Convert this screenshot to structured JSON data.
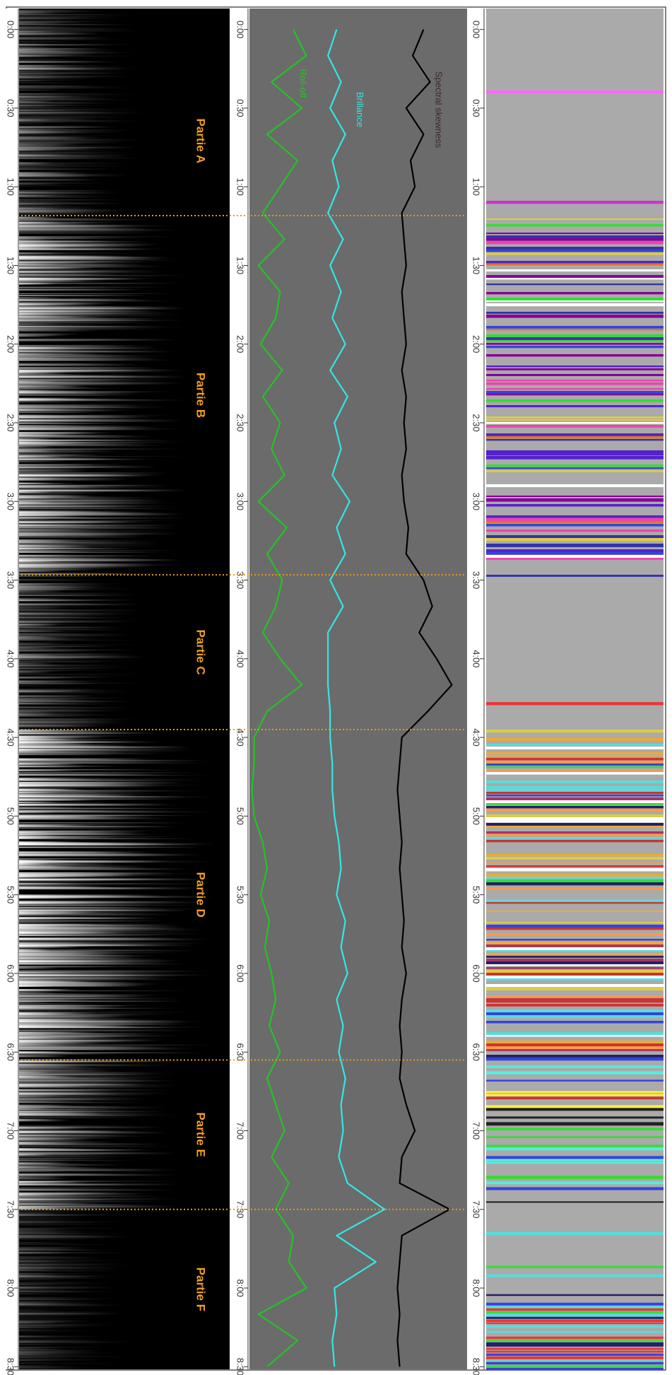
{
  "chart_data": {
    "type": "line",
    "x": [
      0,
      10,
      20,
      30,
      40,
      50,
      60,
      70,
      80,
      90,
      100,
      110,
      120,
      130,
      140,
      150,
      160,
      170,
      180,
      190,
      200,
      210,
      220,
      230,
      240,
      250,
      260,
      270,
      280,
      290,
      300,
      310,
      320,
      330,
      340,
      350,
      360,
      370,
      380,
      390,
      400,
      410,
      420,
      430,
      440,
      450,
      460,
      470,
      480,
      490,
      500,
      510
    ],
    "xlim": [
      -8,
      511
    ],
    "xticks": [
      {
        "value": 0,
        "label": "0:00"
      },
      {
        "value": 30,
        "label": "0:30"
      },
      {
        "value": 60,
        "label": "1:00"
      },
      {
        "value": 90,
        "label": "1:30"
      },
      {
        "value": 120,
        "label": "2:00"
      },
      {
        "value": 150,
        "label": "2:30"
      },
      {
        "value": 180,
        "label": "3:00"
      },
      {
        "value": 210,
        "label": "3:30"
      },
      {
        "value": 240,
        "label": "4:00"
      },
      {
        "value": 270,
        "label": "4:30"
      },
      {
        "value": 300,
        "label": "5:00"
      },
      {
        "value": 330,
        "label": "5:30"
      },
      {
        "value": 360,
        "label": "6:00"
      },
      {
        "value": 390,
        "label": "6:30"
      },
      {
        "value": 420,
        "label": "7:00"
      },
      {
        "value": 450,
        "label": "7:30"
      },
      {
        "value": 480,
        "label": "8:00"
      },
      {
        "value": 510,
        "label": "8:30"
      }
    ],
    "ylim": [
      0,
      100
    ],
    "boundaries": [
      71,
      208,
      267,
      393,
      450
    ],
    "boundary_color": "#e89a1c",
    "sections": [
      "Partie A",
      "Partie B",
      "Partie C",
      "Partie D",
      "Partie E",
      "Partie F"
    ],
    "section_color": "#f0a020",
    "series": [
      {
        "name": "Roll-off",
        "color": "#22c422",
        "values": [
          20,
          26,
          10,
          24,
          8,
          22,
          14,
          6,
          16,
          4,
          14,
          12,
          5,
          15,
          6,
          14,
          10,
          16,
          4,
          17,
          8,
          15,
          12,
          6,
          14,
          24,
          8,
          2,
          2,
          1,
          2,
          6,
          8,
          5,
          9,
          7,
          10,
          12,
          9,
          14,
          8,
          12,
          16,
          10,
          18,
          12,
          20,
          18,
          26,
          4,
          22,
          8
        ]
      },
      {
        "name": "Brillance",
        "color": "#33e6e6",
        "values": [
          40,
          36,
          42,
          37,
          44,
          38,
          41,
          36,
          43,
          37,
          42,
          38,
          44,
          37,
          45,
          39,
          42,
          38,
          46,
          40,
          44,
          37,
          43,
          36,
          36,
          36,
          37,
          37,
          38,
          38,
          39,
          41,
          42,
          40,
          44,
          42,
          45,
          40,
          43,
          41,
          44,
          42,
          43,
          41,
          45,
          62,
          40,
          58,
          39,
          40,
          38,
          39
        ]
      },
      {
        "name": "Spectral skewness",
        "color": "#000000",
        "values": [
          80,
          75,
          83,
          72,
          80,
          74,
          76,
          70,
          71,
          72,
          70,
          71,
          72,
          70,
          72,
          71,
          72,
          70,
          71,
          73,
          72,
          80,
          84,
          78,
          86,
          93,
          82,
          70,
          69,
          68,
          69,
          70,
          69,
          70,
          71,
          70,
          72,
          70,
          69,
          70,
          69,
          72,
          76,
          70,
          69,
          92,
          70,
          69,
          68,
          69,
          68,
          69
        ]
      }
    ]
  }
}
